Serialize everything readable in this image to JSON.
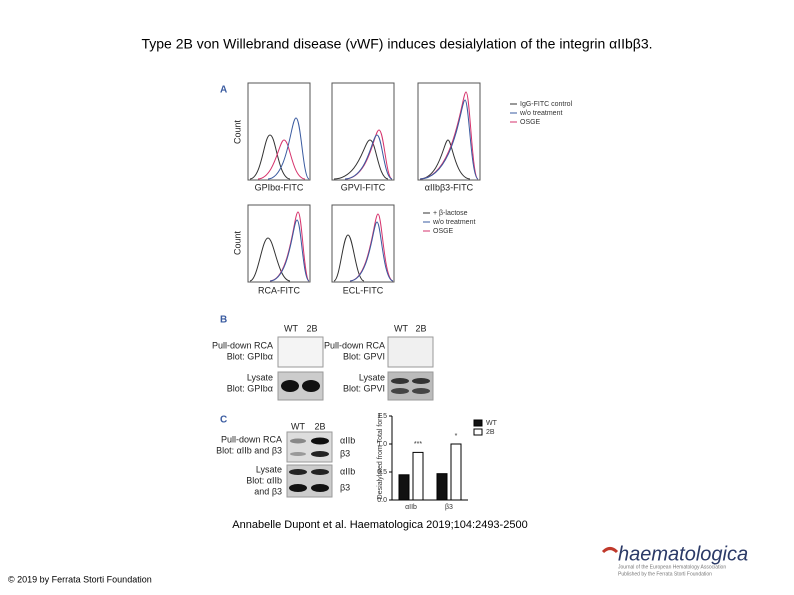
{
  "title": "Type 2B von Willebrand disease (vWF) induces desialylation of the integrin αIIbβ3.",
  "figure": {
    "panel_a": {
      "label": "A",
      "y_label": "Count",
      "row1": {
        "x_labels": [
          "GPIbα-FITC",
          "GPVI-FITC",
          "αIIbβ3-FITC"
        ],
        "legend": [
          "IgG-FITC control",
          "w/o treatment",
          "OSGE"
        ]
      },
      "row2": {
        "x_labels": [
          "RCA-FITC",
          "ECL-FITC"
        ],
        "legend": [
          "+ β-lactose",
          "w/o treatment",
          "OSGE"
        ]
      }
    },
    "panel_b": {
      "label": "B",
      "lanes": [
        "WT",
        "2B"
      ],
      "left": [
        "Pull-down RCA",
        "Blot: GPIbα",
        "Lysate",
        "Blot: GPIbα"
      ],
      "right": [
        "Pull-down RCA",
        "Blot: GPVI",
        "Lysate",
        "Blot: GPVI"
      ]
    },
    "panel_c": {
      "label": "C",
      "lanes": [
        "WT",
        "2B"
      ],
      "blot_labels": [
        "Pull-down RCA",
        "Blot: αIIb and β3",
        "Lysate",
        "Blot: αIIb",
        "and β3"
      ],
      "bands": [
        "αIIb",
        "β3",
        "αIIb",
        "β3"
      ],
      "chart": {
        "type": "bar",
        "y_label": "Desialylated from Total form",
        "categories": [
          "αIIb",
          "β3"
        ],
        "series": [
          {
            "name": "WT",
            "color": "#111111",
            "values": [
              0.45,
              0.47
            ]
          },
          {
            "name": "2B",
            "color": "#ffffff",
            "values": [
              0.85,
              1.0
            ]
          }
        ],
        "annotations": [
          "***",
          "*"
        ],
        "ylim": [
          0,
          1.5
        ],
        "yticks": [
          {
            "value": 0,
            "label": "0.0"
          },
          0.5,
          {
            "value": 1,
            "label": "1.0"
          },
          1.5
        ]
      }
    }
  },
  "citation": "Annabelle Dupont et al. Haematologica 2019;104:2493-2500",
  "footer": "© 2019 by Ferrata Storti Foundation",
  "logo": {
    "name": "haematologica",
    "tagline": [
      "Journal of the European Hematology Association",
      "Published by the Ferrata Storti Foundation"
    ]
  }
}
